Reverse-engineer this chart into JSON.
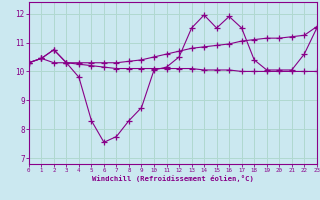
{
  "xlabel": "Windchill (Refroidissement éolien,°C)",
  "background_color": "#cbe8f0",
  "line_color": "#880088",
  "grid_color": "#b0d8d0",
  "x_ticks": [
    0,
    1,
    2,
    3,
    4,
    5,
    6,
    7,
    8,
    9,
    10,
    11,
    12,
    13,
    14,
    15,
    16,
    17,
    18,
    19,
    20,
    21,
    22,
    23
  ],
  "y_ticks": [
    7,
    8,
    9,
    10,
    11,
    12
  ],
  "xlim": [
    0,
    23
  ],
  "ylim": [
    6.8,
    12.4
  ],
  "series1_x": [
    0,
    1,
    2,
    3,
    4,
    5,
    6,
    7,
    8,
    9,
    10,
    11,
    12,
    13,
    14,
    15,
    16,
    17,
    18,
    19,
    20,
    21,
    22,
    23
  ],
  "series1_y": [
    10.3,
    10.45,
    10.3,
    10.3,
    9.8,
    8.3,
    7.55,
    7.75,
    8.3,
    8.75,
    10.05,
    10.15,
    10.5,
    11.5,
    11.95,
    11.5,
    11.9,
    11.5,
    10.4,
    10.05,
    10.05,
    10.05,
    10.6,
    11.5
  ],
  "series2_x": [
    0,
    1,
    2,
    3,
    4,
    5,
    6,
    7,
    8,
    9,
    10,
    11,
    12,
    13,
    14,
    15,
    16,
    17,
    18,
    19,
    20,
    21,
    22,
    23
  ],
  "series2_y": [
    10.3,
    10.45,
    10.75,
    10.3,
    10.3,
    10.3,
    10.3,
    10.3,
    10.35,
    10.4,
    10.5,
    10.6,
    10.7,
    10.8,
    10.85,
    10.9,
    10.95,
    11.05,
    11.1,
    11.15,
    11.15,
    11.2,
    11.25,
    11.55
  ],
  "series3_x": [
    0,
    1,
    2,
    3,
    4,
    5,
    6,
    7,
    8,
    9,
    10,
    11,
    12,
    13,
    14,
    15,
    16,
    17,
    18,
    19,
    20,
    21,
    22,
    23
  ],
  "series3_y": [
    10.3,
    10.45,
    10.75,
    10.3,
    10.25,
    10.2,
    10.15,
    10.1,
    10.1,
    10.1,
    10.1,
    10.1,
    10.1,
    10.1,
    10.05,
    10.05,
    10.05,
    10.0,
    10.0,
    10.0,
    10.0,
    10.0,
    10.0,
    10.0
  ]
}
